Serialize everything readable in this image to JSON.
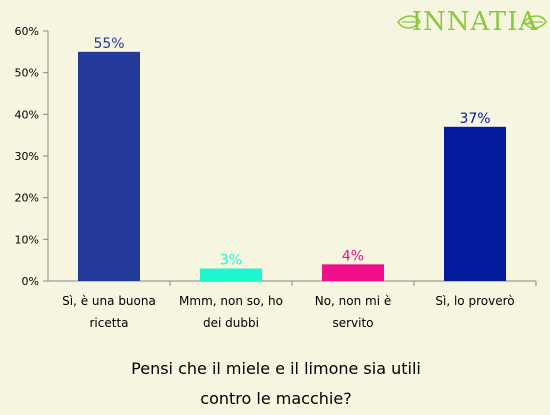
{
  "brand": {
    "name": "INNATIA",
    "color": "#8dc63f"
  },
  "chart_data": {
    "type": "bar",
    "title": "Pensi che il miele e il limone sia utili contro le macchie?",
    "title_lines": [
      "Pensi che il miele e il limone sia utili",
      "contro le macchie?"
    ],
    "categories": [
      [
        "Sì, è una buona",
        "ricetta"
      ],
      [
        "Mmm, non so, ho",
        "dei dubbi"
      ],
      [
        "No, non mi è",
        "servito"
      ],
      [
        "Sì, lo proverò"
      ]
    ],
    "values": [
      55,
      3,
      4,
      37
    ],
    "data_labels": [
      "55%",
      "3%",
      "4%",
      "37%"
    ],
    "colors": [
      "#233a9b",
      "#1ff5cf",
      "#f0108c",
      "#041a9c"
    ],
    "label_colors": [
      "#233a9b",
      "#1ff5cf",
      "#f0108c",
      "#041a9c"
    ],
    "ylim": [
      0,
      60
    ],
    "yticks": [
      0,
      10,
      20,
      30,
      40,
      50,
      60
    ],
    "ytick_labels": [
      "0%",
      "10%",
      "20%",
      "30%",
      "40%",
      "50%",
      "60%"
    ],
    "grid": false,
    "legend": "none"
  }
}
